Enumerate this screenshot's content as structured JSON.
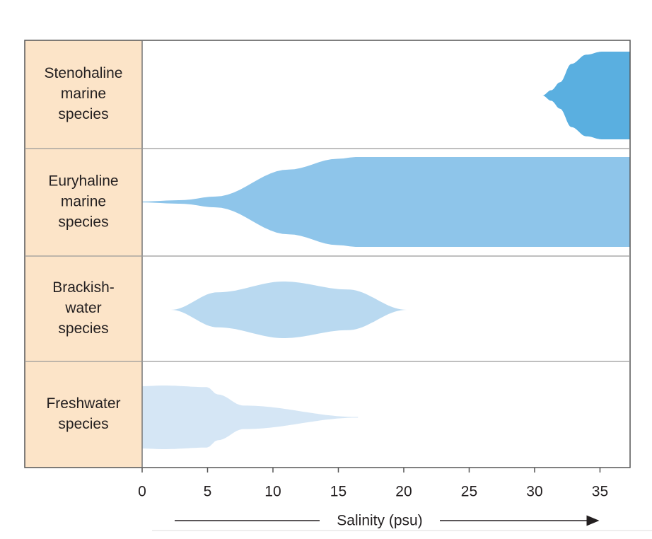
{
  "chart_data": {
    "type": "range",
    "xlabel": "Salinity (psu)",
    "xlim": [
      0,
      37.3
    ],
    "xticks": [
      0,
      5,
      10,
      15,
      20,
      25,
      30,
      35
    ],
    "series": [
      {
        "name_lines": [
          "Stenohaline",
          "marine",
          "species"
        ],
        "color": "#5aafe0",
        "range": [
          30.6,
          37.3
        ]
      },
      {
        "name_lines": [
          "Euryhaline",
          "marine",
          "species"
        ],
        "color": "#8ec5ea",
        "range": [
          0,
          37.3
        ]
      },
      {
        "name_lines": [
          "Brackish-",
          "water",
          "species"
        ],
        "color": "#b9d9f0",
        "range": [
          2.2,
          20.2
        ]
      },
      {
        "name_lines": [
          "Freshwater",
          "species"
        ],
        "color": "#d5e6f5",
        "range": [
          0,
          16.5
        ]
      }
    ]
  }
}
